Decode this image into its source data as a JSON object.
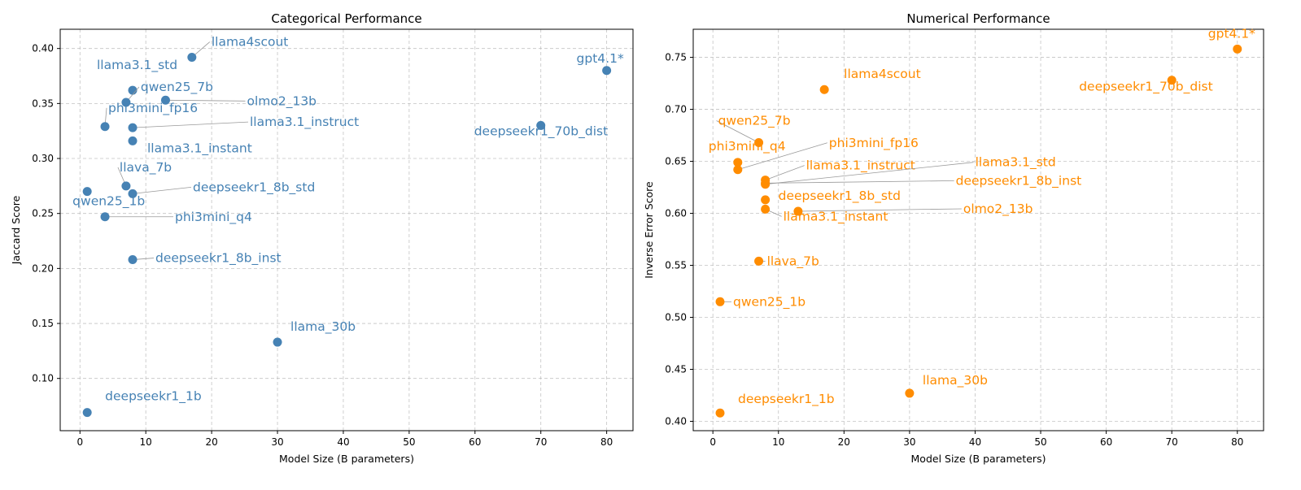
{
  "chart_data": [
    {
      "type": "scatter",
      "title": "Categorical Performance",
      "xlabel": "Model Size (B parameters)",
      "ylabel": "Jaccard Score",
      "xlim": [
        -3,
        84
      ],
      "ylim": [
        0.0525,
        0.4175
      ],
      "xticks": [
        0,
        10,
        20,
        30,
        40,
        50,
        60,
        70,
        80
      ],
      "yticks": [
        "0.10",
        "0.15",
        "0.20",
        "0.25",
        "0.30",
        "0.35",
        "0.40"
      ],
      "grid": true,
      "color": "#4682b4",
      "points": [
        {
          "label": "llama4scout",
          "x": 17,
          "y": 0.392
        },
        {
          "label": "gpt4.1*",
          "x": 80,
          "y": 0.38
        },
        {
          "label": "llama3.1_std",
          "x": 8,
          "y": 0.362
        },
        {
          "label": "qwen25_7b",
          "x": 7,
          "y": 0.351
        },
        {
          "label": "olmo2_13b",
          "x": 13,
          "y": 0.353
        },
        {
          "label": "phi3mini_fp16",
          "x": 3.8,
          "y": 0.329
        },
        {
          "label": "llama3.1_instruct",
          "x": 8,
          "y": 0.328
        },
        {
          "label": "deepseekr1_70b_dist",
          "x": 70,
          "y": 0.33
        },
        {
          "label": "llama3.1_instant",
          "x": 8,
          "y": 0.316
        },
        {
          "label": "llava_7b",
          "x": 7,
          "y": 0.275
        },
        {
          "label": "deepseekr1_8b_std",
          "x": 8,
          "y": 0.268
        },
        {
          "label": "qwen25_1b",
          "x": 1.1,
          "y": 0.27
        },
        {
          "label": "phi3mini_q4",
          "x": 3.8,
          "y": 0.247
        },
        {
          "label": "deepseekr1_8b_inst",
          "x": 8,
          "y": 0.208
        },
        {
          "label": "llama_30b",
          "x": 30,
          "y": 0.133
        },
        {
          "label": "deepseekr1_1b",
          "x": 1.1,
          "y": 0.069
        }
      ]
    },
    {
      "type": "scatter",
      "title": "Numerical Performance",
      "xlabel": "Model Size (B parameters)",
      "ylabel": "Inverse Error Score",
      "xlim": [
        -3,
        84
      ],
      "ylim": [
        0.391,
        0.777
      ],
      "xticks": [
        0,
        10,
        20,
        30,
        40,
        50,
        60,
        70,
        80
      ],
      "yticks": [
        "0.40",
        "0.45",
        "0.50",
        "0.55",
        "0.60",
        "0.65",
        "0.70",
        "0.75"
      ],
      "grid": true,
      "color": "#ff8c00",
      "points": [
        {
          "label": "gpt4.1*",
          "x": 80,
          "y": 0.758
        },
        {
          "label": "deepseekr1_70b_dist",
          "x": 70,
          "y": 0.728
        },
        {
          "label": "llama4scout",
          "x": 17,
          "y": 0.719
        },
        {
          "label": "qwen25_7b",
          "x": 7,
          "y": 0.668
        },
        {
          "label": "phi3mini_q4",
          "x": 3.8,
          "y": 0.649
        },
        {
          "label": "phi3mini_fp16",
          "x": 3.8,
          "y": 0.642
        },
        {
          "label": "llama3.1_instruct",
          "x": 8,
          "y": 0.632
        },
        {
          "label": "llama3.1_std",
          "x": 8,
          "y": 0.628
        },
        {
          "label": "deepseekr1_8b_inst",
          "x": 8,
          "y": 0.629
        },
        {
          "label": "deepseekr1_8b_std",
          "x": 8,
          "y": 0.613
        },
        {
          "label": "llama3.1_instant",
          "x": 8,
          "y": 0.604
        },
        {
          "label": "olmo2_13b",
          "x": 13,
          "y": 0.602
        },
        {
          "label": "llava_7b",
          "x": 7,
          "y": 0.554
        },
        {
          "label": "qwen25_1b",
          "x": 1.1,
          "y": 0.515
        },
        {
          "label": "llama_30b",
          "x": 30,
          "y": 0.427
        },
        {
          "label": "deepseekr1_1b",
          "x": 1.1,
          "y": 0.408
        }
      ]
    }
  ]
}
